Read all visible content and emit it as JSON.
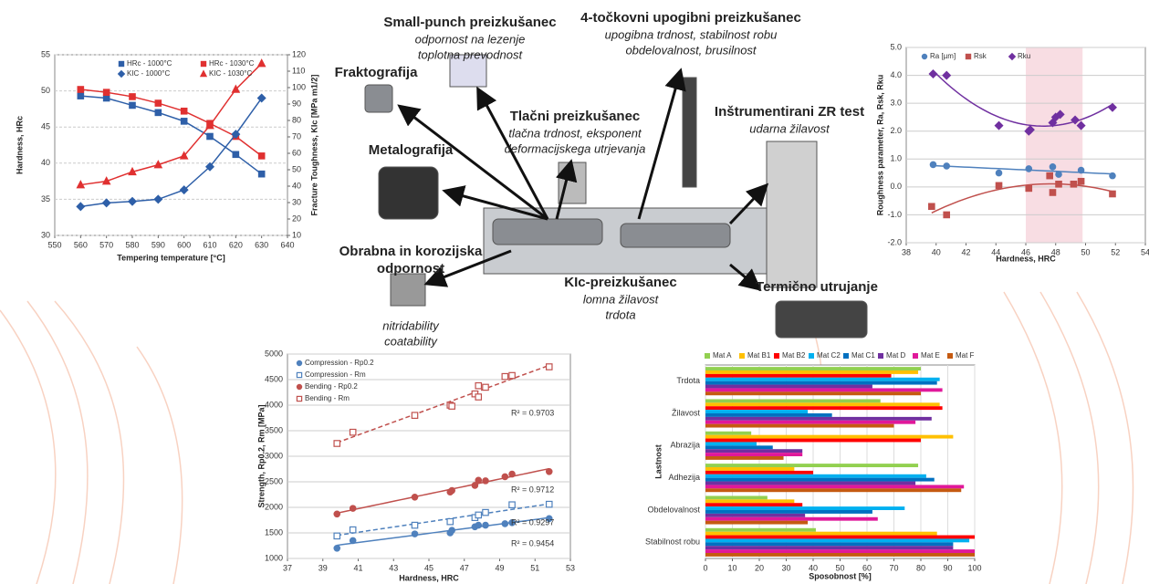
{
  "chart_data": [
    {
      "type": "line",
      "ylabel": "Hardness, HRc",
      "y2label": "Fracture Toughness, KIc [MPa m1/2]",
      "xlabel": "Tempering temperature [°C]",
      "x": [
        560,
        570,
        580,
        590,
        600,
        610,
        620,
        630
      ],
      "xlim": [
        550,
        640
      ],
      "xticks": [
        550,
        560,
        570,
        580,
        590,
        600,
        610,
        620,
        630,
        640
      ],
      "ylim": [
        30,
        55
      ],
      "yticks": [
        30,
        35,
        40,
        45,
        50,
        55
      ],
      "y2lim": [
        10,
        120
      ],
      "y2ticks": [
        10,
        20,
        30,
        40,
        50,
        60,
        70,
        80,
        90,
        100,
        110,
        120
      ],
      "grid": true,
      "series": [
        {
          "name": "HRc - 1000°C",
          "color": "#2e5fa8",
          "marker": "square",
          "values": [
            49.3,
            49.0,
            48.0,
            47.0,
            45.8,
            43.7,
            41.2,
            38.5
          ]
        },
        {
          "name": "HRc - 1030°C",
          "color": "#e03030",
          "marker": "square",
          "values": [
            50.2,
            49.8,
            49.2,
            48.3,
            47.2,
            45.5,
            43.7,
            41.0
          ]
        },
        {
          "name": "KIC - 1000°C",
          "color": "#2e5fa8",
          "marker": "diamond",
          "axis": "y2",
          "values": [
            27.6,
            29.8,
            30.7,
            32.0,
            37.7,
            51.8,
            71.6,
            93.6
          ]
        },
        {
          "name": "KIC - 1030°C",
          "color": "#e03030",
          "marker": "triangle",
          "axis": "y2",
          "values": [
            40.8,
            43.0,
            48.7,
            53.0,
            58.4,
            76.9,
            98.9,
            114.7
          ]
        }
      ]
    },
    {
      "type": "scatter",
      "ylabel": "Roughness parameter, Ra, Rsk, Rku",
      "xlabel": "Hardness, HRC",
      "xlim": [
        38,
        54
      ],
      "xticks": [
        38,
        40,
        42,
        44,
        46,
        48,
        50,
        52,
        54
      ],
      "ylim": [
        -2,
        5
      ],
      "yticks": [
        {
          "value": -2,
          "label": "-2.0"
        },
        {
          "value": -1,
          "label": "-1.0"
        },
        {
          "value": 0,
          "label": "0.0"
        },
        {
          "value": 1,
          "label": "1.0"
        },
        {
          "value": 2,
          "label": "2.0"
        },
        {
          "value": 3,
          "label": "3.0"
        },
        {
          "value": 4,
          "label": "4.0"
        },
        {
          "value": 5,
          "label": "5.0"
        }
      ],
      "grid": true,
      "trendline": "poly2",
      "shaded_x": [
        46,
        49.8
      ],
      "series": [
        {
          "name": "Ra [µm]",
          "color": "#4f81bd",
          "marker": "circle",
          "x": [
            39.8,
            40.7,
            44.2,
            46.2,
            47.8,
            48.2,
            49.7,
            51.8
          ],
          "values": [
            0.8,
            0.75,
            0.5,
            0.65,
            0.72,
            0.45,
            0.6,
            0.4
          ]
        },
        {
          "name": "Rsk",
          "color": "#c0504d",
          "marker": "square",
          "x": [
            39.7,
            40.7,
            44.2,
            46.2,
            47.6,
            47.8,
            48.2,
            49.2,
            49.7,
            51.8
          ],
          "values": [
            -0.7,
            -1.0,
            0.05,
            -0.05,
            0.4,
            -0.2,
            0.1,
            0.1,
            0.2,
            -0.25
          ]
        },
        {
          "name": "Rku",
          "color": "#7030a0",
          "marker": "diamond",
          "x": [
            39.8,
            40.7,
            44.2,
            46.2,
            46.3,
            47.8,
            48.0,
            48.3,
            49.3,
            49.7,
            51.8
          ],
          "values": [
            4.05,
            4.0,
            2.2,
            2.0,
            2.05,
            2.3,
            2.5,
            2.6,
            2.4,
            2.2,
            2.85
          ]
        }
      ]
    },
    {
      "type": "scatter",
      "ylabel": "Strength, Rp0.2, Rm [MPa]",
      "xlabel": "Hardness, HRC",
      "xlim": [
        37,
        53
      ],
      "xticks": [
        37,
        39,
        41,
        43,
        45,
        47,
        49,
        51,
        53
      ],
      "ylim": [
        1000,
        5000
      ],
      "yticks": [
        1000,
        1500,
        2000,
        2500,
        3000,
        3500,
        4000,
        4500,
        5000
      ],
      "grid": true,
      "trendline": "linear",
      "annotations": [
        "R² = 0.9703",
        "R² = 0.9712",
        "R² = 0.9297",
        "R² = 0.9454"
      ],
      "series": [
        {
          "name": "Compression - Rp0.2",
          "color": "#4f81bd",
          "marker": "circle",
          "x": [
            39.8,
            40.7,
            44.2,
            46.2,
            46.3,
            47.6,
            47.8,
            48.2,
            49.3,
            49.7,
            51.8
          ],
          "values": [
            1200,
            1350,
            1480,
            1500,
            1550,
            1620,
            1650,
            1650,
            1680,
            1700,
            1780
          ]
        },
        {
          "name": "Compression - Rm",
          "color": "#4f81bd",
          "marker": "square",
          "filled": false,
          "line_style": "dashed",
          "x": [
            39.8,
            40.7,
            44.2,
            46.2,
            47.6,
            47.8,
            48.2,
            49.7,
            51.8
          ],
          "values": [
            1440,
            1560,
            1650,
            1720,
            1800,
            1850,
            1900,
            2050,
            2060
          ]
        },
        {
          "name": "Bending - Rp0.2",
          "color": "#c0504d",
          "marker": "circle",
          "x": [
            39.8,
            40.7,
            44.2,
            46.2,
            46.3,
            47.6,
            47.8,
            48.2,
            49.3,
            49.7,
            51.8
          ],
          "values": [
            1870,
            1980,
            2200,
            2300,
            2330,
            2430,
            2530,
            2520,
            2600,
            2650,
            2700
          ]
        },
        {
          "name": "Bending - Rm",
          "color": "#c0504d",
          "marker": "square",
          "filled": false,
          "line_style": "dashed",
          "x": [
            39.8,
            40.7,
            44.2,
            46.2,
            46.3,
            47.6,
            47.8,
            47.8,
            48.2,
            49.3,
            49.7,
            51.8
          ],
          "values": [
            3250,
            3470,
            3800,
            4000,
            3980,
            4220,
            4160,
            4380,
            4350,
            4560,
            4580,
            4750
          ]
        }
      ]
    },
    {
      "type": "bar",
      "orientation": "horizontal",
      "ylabel": "Lastnost",
      "xlabel": "Sposobnost [%]",
      "categories": [
        "Trdota",
        "Žilavost",
        "Abrazija",
        "Adhezija",
        "Obdelovalnost",
        "Stabilnost robu"
      ],
      "xlim": [
        0,
        100
      ],
      "xticks": [
        0,
        10,
        20,
        30,
        40,
        50,
        60,
        70,
        80,
        90,
        100
      ],
      "grid": true,
      "series": [
        {
          "name": "Mat A",
          "color": "#92d050",
          "values": [
            80,
            65,
            17,
            79,
            23,
            41
          ]
        },
        {
          "name": "Mat B1",
          "color": "#ffc000",
          "values": [
            79,
            87,
            92,
            33,
            33,
            86
          ]
        },
        {
          "name": "Mat B2",
          "color": "#ff0000",
          "values": [
            69,
            88,
            80,
            40,
            36,
            100
          ]
        },
        {
          "name": "Mat C2",
          "color": "#00b0f0",
          "values": [
            87,
            38,
            19,
            82,
            74,
            98
          ]
        },
        {
          "name": "Mat C1",
          "color": "#0070c0",
          "values": [
            86,
            47,
            25,
            85,
            62,
            92
          ]
        },
        {
          "name": "Mat D",
          "color": "#7030a0",
          "values": [
            62,
            84,
            36,
            78,
            37,
            92
          ]
        },
        {
          "name": "Mat E",
          "color": "#e0189a",
          "values": [
            88,
            78,
            36,
            96,
            64,
            100
          ]
        },
        {
          "name": "Mat F",
          "color": "#c55a11",
          "values": [
            80,
            70,
            29,
            95,
            38,
            100
          ]
        }
      ]
    }
  ],
  "labels": [
    {
      "title": [
        "Small-punch preizkušanec"
      ],
      "lines": [
        "odpornost na lezenje",
        "toplotna prevodnost"
      ]
    },
    {
      "title": [
        "4-točkovni upogibni preizkušanec"
      ],
      "lines": [
        "upogibna trdnost, stabilnost robu",
        "obdelovalnost, brusilnost"
      ]
    },
    {
      "title": [
        "Fraktografija"
      ]
    },
    {
      "title": [
        "Tlačni preizkušanec"
      ],
      "lines": [
        "tlačna trdnost, eksponent",
        "deformacijskega utrjevanja"
      ]
    },
    {
      "title": [
        "Inštrumentirani ZR test"
      ],
      "lines": [
        "udarna žilavost"
      ]
    },
    {
      "title": [
        "Metalografija"
      ]
    },
    {
      "title": [
        "Obrabna in korozijska",
        "odpornost"
      ]
    },
    {
      "lines": [
        "nitridability",
        "coatability"
      ]
    },
    {
      "title": [
        "KIc-preizkušanec"
      ],
      "lines": [
        "lomna žilavost",
        "trdota"
      ]
    },
    {
      "title": [
        "Termično utrujanje"
      ]
    }
  ]
}
